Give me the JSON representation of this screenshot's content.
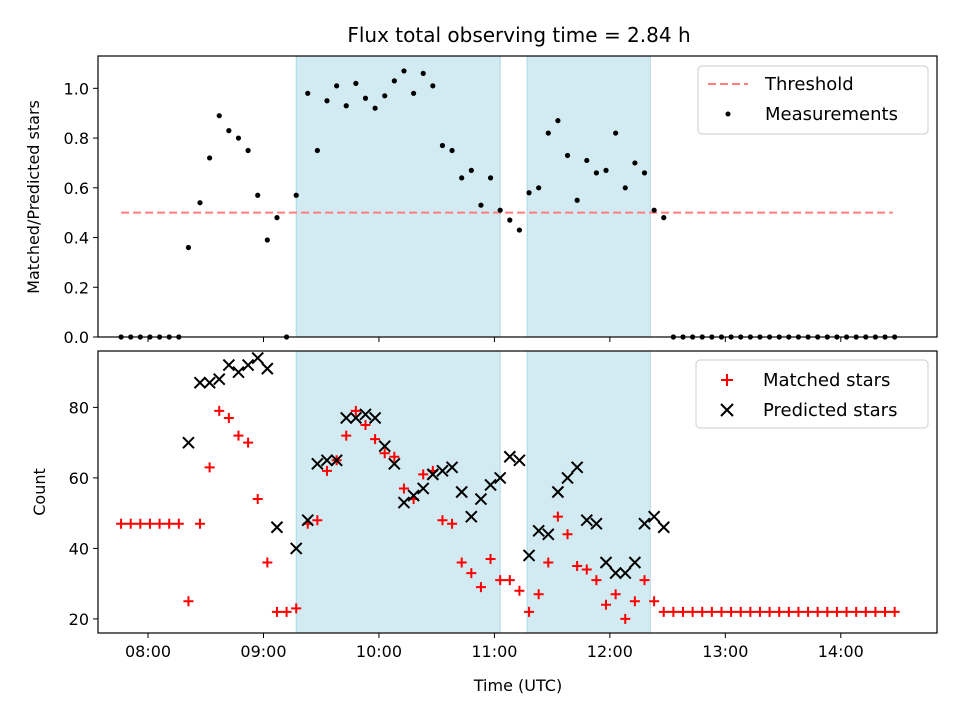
{
  "chart_data": {
    "title": "Flux total observing time = 2.84 h",
    "x_axis": {
      "label": "Time (UTC)",
      "range": [
        "07:34",
        "14:50"
      ],
      "ticks": [
        "08:00",
        "09:00",
        "10:00",
        "11:00",
        "12:00",
        "13:00",
        "14:00"
      ]
    },
    "shaded_intervals": [
      {
        "start": "09:17",
        "end": "11:03"
      },
      {
        "start": "11:17",
        "end": "12:21"
      }
    ],
    "colors": {
      "threshold": "#ff7f7f",
      "shade": "#add8e6",
      "matched": "#ff0000",
      "predicted": "#000000",
      "measurement": "#000000"
    },
    "panels": [
      {
        "type": "scatter",
        "ylabel": "Matched/Predicted stars",
        "ylim": [
          0,
          1.13
        ],
        "yticks": [
          "0.0",
          "0.2",
          "0.4",
          "0.6",
          "0.8",
          "1.0"
        ],
        "threshold": {
          "name": "Threshold",
          "value": 0.5,
          "x_start": "07:46",
          "x_end": "14:27"
        },
        "legend": {
          "placement": "upper-right",
          "entries": [
            "Threshold",
            "Measurements"
          ]
        },
        "series": [
          {
            "name": "Measurements",
            "marker": "dot",
            "points": [
              [
                "07:46",
                0.0
              ],
              [
                "07:51",
                0.0
              ],
              [
                "07:56",
                0.0
              ],
              [
                "08:01",
                0.0
              ],
              [
                "08:06",
                0.0
              ],
              [
                "08:11",
                0.0
              ],
              [
                "08:16",
                0.0
              ],
              [
                "08:21",
                0.36
              ],
              [
                "08:27",
                0.54
              ],
              [
                "08:32",
                0.72
              ],
              [
                "08:37",
                0.89
              ],
              [
                "08:42",
                0.83
              ],
              [
                "08:47",
                0.8
              ],
              [
                "08:52",
                0.75
              ],
              [
                "08:57",
                0.57
              ],
              [
                "09:02",
                0.39
              ],
              [
                "09:07",
                0.48
              ],
              [
                "09:12",
                0.0
              ],
              [
                "09:17",
                0.57
              ],
              [
                "09:23",
                0.98
              ],
              [
                "09:28",
                0.75
              ],
              [
                "09:33",
                0.95
              ],
              [
                "09:38",
                1.01
              ],
              [
                "09:43",
                0.93
              ],
              [
                "09:48",
                1.02
              ],
              [
                "09:53",
                0.96
              ],
              [
                "09:58",
                0.92
              ],
              [
                "10:03",
                0.97
              ],
              [
                "10:08",
                1.03
              ],
              [
                "10:13",
                1.07
              ],
              [
                "10:18",
                0.98
              ],
              [
                "10:23",
                1.06
              ],
              [
                "10:28",
                1.01
              ],
              [
                "10:33",
                0.77
              ],
              [
                "10:38",
                0.75
              ],
              [
                "10:43",
                0.64
              ],
              [
                "10:48",
                0.67
              ],
              [
                "10:53",
                0.53
              ],
              [
                "10:58",
                0.64
              ],
              [
                "11:03",
                0.51
              ],
              [
                "11:08",
                0.47
              ],
              [
                "11:13",
                0.43
              ],
              [
                "11:18",
                0.58
              ],
              [
                "11:23",
                0.6
              ],
              [
                "11:28",
                0.82
              ],
              [
                "11:33",
                0.87
              ],
              [
                "11:38",
                0.73
              ],
              [
                "11:43",
                0.55
              ],
              [
                "11:48",
                0.71
              ],
              [
                "11:53",
                0.66
              ],
              [
                "11:58",
                0.67
              ],
              [
                "12:03",
                0.82
              ],
              [
                "12:08",
                0.6
              ],
              [
                "12:13",
                0.7
              ],
              [
                "12:18",
                0.66
              ],
              [
                "12:23",
                0.51
              ],
              [
                "12:28",
                0.48
              ],
              [
                "12:33",
                0.0
              ],
              [
                "12:38",
                0.0
              ],
              [
                "12:43",
                0.0
              ],
              [
                "12:48",
                0.0
              ],
              [
                "12:53",
                0.0
              ],
              [
                "12:58",
                0.0
              ],
              [
                "13:03",
                0.0
              ],
              [
                "13:08",
                0.0
              ],
              [
                "13:13",
                0.0
              ],
              [
                "13:18",
                0.0
              ],
              [
                "13:23",
                0.0
              ],
              [
                "13:28",
                0.0
              ],
              [
                "13:33",
                0.0
              ],
              [
                "13:38",
                0.0
              ],
              [
                "13:43",
                0.0
              ],
              [
                "13:48",
                0.0
              ],
              [
                "13:53",
                0.0
              ],
              [
                "13:58",
                0.0
              ],
              [
                "14:03",
                0.0
              ],
              [
                "14:08",
                0.0
              ],
              [
                "14:13",
                0.0
              ],
              [
                "14:18",
                0.0
              ],
              [
                "14:23",
                0.0
              ],
              [
                "14:28",
                0.0
              ]
            ]
          }
        ]
      },
      {
        "type": "scatter",
        "ylabel": "Count",
        "xlabel": "Time (UTC)",
        "ylim": [
          16,
          96
        ],
        "yticks": [
          "20",
          "40",
          "60",
          "80"
        ],
        "legend": {
          "placement": "upper-right",
          "entries": [
            "Matched stars",
            "Predicted stars"
          ]
        },
        "series": [
          {
            "name": "Matched stars",
            "marker": "plus",
            "points": [
              [
                "07:46",
                47
              ],
              [
                "07:51",
                47
              ],
              [
                "07:56",
                47
              ],
              [
                "08:01",
                47
              ],
              [
                "08:06",
                47
              ],
              [
                "08:11",
                47
              ],
              [
                "08:16",
                47
              ],
              [
                "08:21",
                25
              ],
              [
                "08:27",
                47
              ],
              [
                "08:32",
                63
              ],
              [
                "08:37",
                79
              ],
              [
                "08:42",
                77
              ],
              [
                "08:47",
                72
              ],
              [
                "08:52",
                70
              ],
              [
                "08:57",
                54
              ],
              [
                "09:02",
                36
              ],
              [
                "09:07",
                22
              ],
              [
                "09:12",
                22
              ],
              [
                "09:17",
                23
              ],
              [
                "09:23",
                47
              ],
              [
                "09:28",
                48
              ],
              [
                "09:33",
                62
              ],
              [
                "09:38",
                65
              ],
              [
                "09:43",
                72
              ],
              [
                "09:48",
                79
              ],
              [
                "09:53",
                75
              ],
              [
                "09:58",
                71
              ],
              [
                "10:03",
                67
              ],
              [
                "10:08",
                66
              ],
              [
                "10:13",
                57
              ],
              [
                "10:18",
                54
              ],
              [
                "10:23",
                61
              ],
              [
                "10:28",
                62
              ],
              [
                "10:33",
                48
              ],
              [
                "10:38",
                47
              ],
              [
                "10:43",
                36
              ],
              [
                "10:48",
                33
              ],
              [
                "10:53",
                29
              ],
              [
                "10:58",
                37
              ],
              [
                "11:03",
                31
              ],
              [
                "11:08",
                31
              ],
              [
                "11:13",
                28
              ],
              [
                "11:18",
                22
              ],
              [
                "11:23",
                27
              ],
              [
                "11:28",
                36
              ],
              [
                "11:33",
                49
              ],
              [
                "11:38",
                44
              ],
              [
                "11:43",
                35
              ],
              [
                "11:48",
                34
              ],
              [
                "11:53",
                31
              ],
              [
                "11:58",
                24
              ],
              [
                "12:03",
                27
              ],
              [
                "12:08",
                20
              ],
              [
                "12:13",
                25
              ],
              [
                "12:18",
                31
              ],
              [
                "12:23",
                25
              ],
              [
                "12:28",
                22
              ],
              [
                "12:33",
                22
              ],
              [
                "12:38",
                22
              ],
              [
                "12:43",
                22
              ],
              [
                "12:48",
                22
              ],
              [
                "12:53",
                22
              ],
              [
                "12:58",
                22
              ],
              [
                "13:03",
                22
              ],
              [
                "13:08",
                22
              ],
              [
                "13:13",
                22
              ],
              [
                "13:18",
                22
              ],
              [
                "13:23",
                22
              ],
              [
                "13:28",
                22
              ],
              [
                "13:33",
                22
              ],
              [
                "13:38",
                22
              ],
              [
                "13:43",
                22
              ],
              [
                "13:48",
                22
              ],
              [
                "13:53",
                22
              ],
              [
                "13:58",
                22
              ],
              [
                "14:03",
                22
              ],
              [
                "14:08",
                22
              ],
              [
                "14:13",
                22
              ],
              [
                "14:18",
                22
              ],
              [
                "14:23",
                22
              ],
              [
                "14:28",
                22
              ]
            ]
          },
          {
            "name": "Predicted stars",
            "marker": "x",
            "points": [
              [
                "08:21",
                70
              ],
              [
                "08:27",
                87
              ],
              [
                "08:32",
                87
              ],
              [
                "08:37",
                88
              ],
              [
                "08:42",
                92
              ],
              [
                "08:47",
                90
              ],
              [
                "08:52",
                92
              ],
              [
                "08:57",
                94
              ],
              [
                "09:02",
                91
              ],
              [
                "09:07",
                46
              ],
              [
                "09:17",
                40
              ],
              [
                "09:23",
                48
              ],
              [
                "09:28",
                64
              ],
              [
                "09:33",
                65
              ],
              [
                "09:38",
                65
              ],
              [
                "09:43",
                77
              ],
              [
                "09:48",
                77
              ],
              [
                "09:53",
                78
              ],
              [
                "09:58",
                77
              ],
              [
                "10:03",
                69
              ],
              [
                "10:08",
                64
              ],
              [
                "10:13",
                53
              ],
              [
                "10:18",
                55
              ],
              [
                "10:23",
                57
              ],
              [
                "10:28",
                61
              ],
              [
                "10:33",
                62
              ],
              [
                "10:38",
                63
              ],
              [
                "10:43",
                56
              ],
              [
                "10:48",
                49
              ],
              [
                "10:53",
                54
              ],
              [
                "10:58",
                58
              ],
              [
                "11:03",
                60
              ],
              [
                "11:08",
                66
              ],
              [
                "11:13",
                65
              ],
              [
                "11:18",
                38
              ],
              [
                "11:23",
                45
              ],
              [
                "11:28",
                44
              ],
              [
                "11:33",
                56
              ],
              [
                "11:38",
                60
              ],
              [
                "11:43",
                63
              ],
              [
                "11:48",
                48
              ],
              [
                "11:53",
                47
              ],
              [
                "11:58",
                36
              ],
              [
                "12:03",
                33
              ],
              [
                "12:08",
                33
              ],
              [
                "12:13",
                36
              ],
              [
                "12:18",
                47
              ],
              [
                "12:23",
                49
              ],
              [
                "12:28",
                46
              ]
            ]
          }
        ]
      }
    ]
  }
}
